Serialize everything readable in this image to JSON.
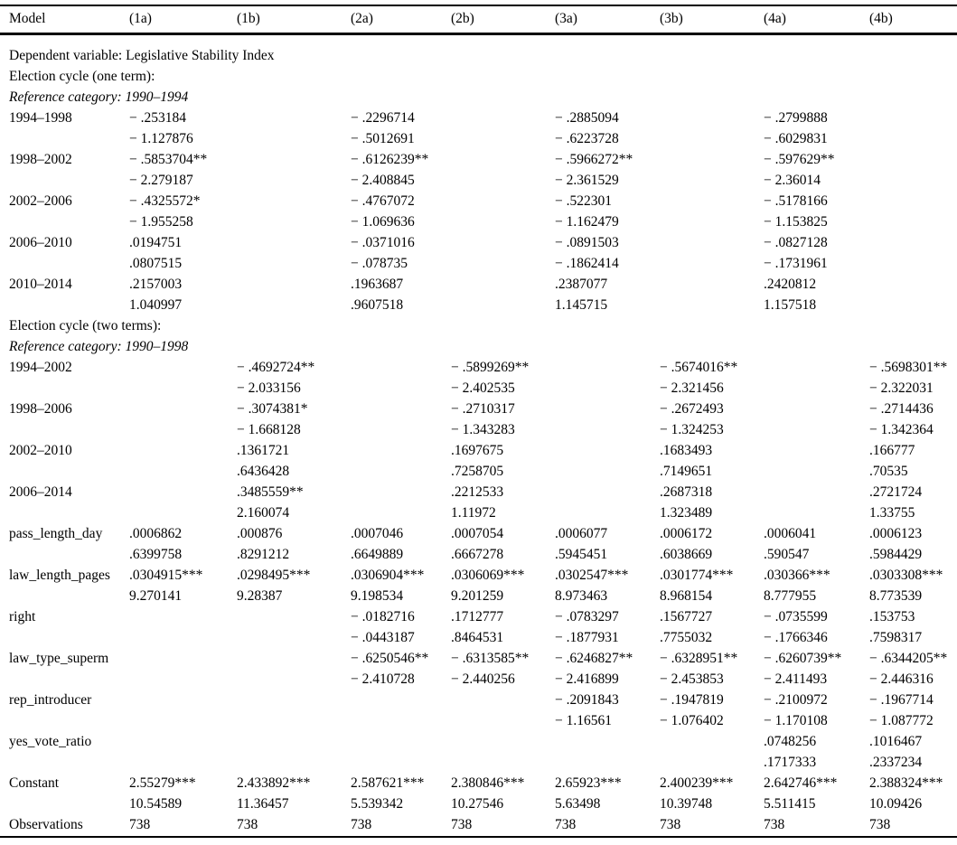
{
  "table": {
    "header": [
      "Model",
      "(1a)",
      "(1b)",
      "(2a)",
      "(2b)",
      "(3a)",
      "(3b)",
      "(4a)",
      "(4b)"
    ],
    "rows": [
      {
        "style": "span",
        "label": "Dependent variable: Legislative Stability Index"
      },
      {
        "style": "span",
        "label": "Election cycle (one term):"
      },
      {
        "style": "span-italic",
        "label": "Reference category: 1990–1994"
      },
      {
        "style": "data",
        "label": "1994–1998",
        "cells": [
          "− .253184",
          "",
          "− .2296714",
          "",
          "− .2885094",
          "",
          "− .2799888",
          ""
        ]
      },
      {
        "style": "data",
        "label": "",
        "cells": [
          "− 1.127876",
          "",
          "− .5012691",
          "",
          "− .6223728",
          "",
          "− .6029831",
          ""
        ]
      },
      {
        "style": "data",
        "label": "1998–2002",
        "cells": [
          "− .5853704**",
          "",
          "− .6126239**",
          "",
          "− .5966272**",
          "",
          "− .597629**",
          ""
        ]
      },
      {
        "style": "data",
        "label": "",
        "cells": [
          "− 2.279187",
          "",
          "− 2.408845",
          "",
          "− 2.361529",
          "",
          "− 2.36014",
          ""
        ]
      },
      {
        "style": "data",
        "label": "2002–2006",
        "cells": [
          "− .4325572*",
          "",
          "− .4767072",
          "",
          "− .522301",
          "",
          "− .5178166",
          ""
        ]
      },
      {
        "style": "data",
        "label": "",
        "cells": [
          "− 1.955258",
          "",
          "− 1.069636",
          "",
          "− 1.162479",
          "",
          "− 1.153825",
          ""
        ]
      },
      {
        "style": "data",
        "label": "2006–2010",
        "cells": [
          ".0194751",
          "",
          "− .0371016",
          "",
          "− .0891503",
          "",
          "− .0827128",
          ""
        ]
      },
      {
        "style": "data",
        "label": "",
        "cells": [
          ".0807515",
          "",
          "− .078735",
          "",
          "− .1862414",
          "",
          "− .1731961",
          ""
        ]
      },
      {
        "style": "data",
        "label": "2010–2014",
        "cells": [
          ".2157003",
          "",
          ".1963687",
          "",
          ".2387077",
          "",
          ".2420812",
          ""
        ]
      },
      {
        "style": "data",
        "label": "",
        "cells": [
          "1.040997",
          "",
          ".9607518",
          "",
          "1.145715",
          "",
          "1.157518",
          ""
        ]
      },
      {
        "style": "span",
        "label": "Election cycle (two terms):"
      },
      {
        "style": "span-italic",
        "label": "Reference category: 1990–1998"
      },
      {
        "style": "data",
        "label": "1994–2002",
        "cells": [
          "",
          "− .4692724**",
          "",
          "− .5899269**",
          "",
          "− .5674016**",
          "",
          "− .5698301**"
        ]
      },
      {
        "style": "data",
        "label": "",
        "cells": [
          "",
          "− 2.033156",
          "",
          "− 2.402535",
          "",
          "− 2.321456",
          "",
          "− 2.322031"
        ]
      },
      {
        "style": "data",
        "label": "1998–2006",
        "cells": [
          "",
          "− .3074381*",
          "",
          "− .2710317",
          "",
          "− .2672493",
          "",
          "− .2714436"
        ]
      },
      {
        "style": "data",
        "label": "",
        "cells": [
          "",
          "− 1.668128",
          "",
          "− 1.343283",
          "",
          "− 1.324253",
          "",
          "− 1.342364"
        ]
      },
      {
        "style": "data",
        "label": "2002–2010",
        "cells": [
          "",
          ".1361721",
          "",
          ".1697675",
          "",
          ".1683493",
          "",
          ".166777"
        ]
      },
      {
        "style": "data",
        "label": "",
        "cells": [
          "",
          ".6436428",
          "",
          ".7258705",
          "",
          ".7149651",
          "",
          ".70535"
        ]
      },
      {
        "style": "data",
        "label": "2006–2014",
        "cells": [
          "",
          ".3485559**",
          "",
          ".2212533",
          "",
          ".2687318",
          "",
          ".2721724"
        ]
      },
      {
        "style": "data",
        "label": "",
        "cells": [
          "",
          "2.160074",
          "",
          "1.11972",
          "",
          "1.323489",
          "",
          "1.33755"
        ]
      },
      {
        "style": "data",
        "label": "pass_length_day",
        "cells": [
          ".0006862",
          ".000876",
          ".0007046",
          ".0007054",
          ".0006077",
          ".0006172",
          ".0006041",
          ".0006123"
        ]
      },
      {
        "style": "data",
        "label": "",
        "cells": [
          ".6399758",
          ".8291212",
          ".6649889",
          ".6667278",
          ".5945451",
          ".6038669",
          ".590547",
          ".5984429"
        ]
      },
      {
        "style": "data",
        "label": "law_length_pages",
        "cells": [
          ".0304915***",
          ".0298495***",
          ".0306904***",
          ".0306069***",
          ".0302547***",
          ".0301774***",
          ".030366***",
          ".0303308***"
        ]
      },
      {
        "style": "data",
        "label": "",
        "cells": [
          "9.270141",
          "9.28387",
          "9.198534",
          "9.201259",
          "8.973463",
          "8.968154",
          "8.777955",
          "8.773539"
        ]
      },
      {
        "style": "data",
        "label": "right",
        "cells": [
          "",
          "",
          "− .0182716",
          ".1712777",
          "− .0783297",
          ".1567727",
          "− .0735599",
          ".153753"
        ]
      },
      {
        "style": "data",
        "label": "",
        "cells": [
          "",
          "",
          "− .0443187",
          ".8464531",
          "− .1877931",
          ".7755032",
          "− .1766346",
          ".7598317"
        ]
      },
      {
        "style": "data",
        "label": "law_type_superm",
        "cells": [
          "",
          "",
          "− .6250546**",
          "− .6313585**",
          "− .6246827**",
          "− .6328951**",
          "− .6260739**",
          "− .6344205**"
        ]
      },
      {
        "style": "data",
        "label": "",
        "cells": [
          "",
          "",
          "− 2.410728",
          "− 2.440256",
          "− 2.416899",
          "− 2.453853",
          "− 2.411493",
          "− 2.446316"
        ]
      },
      {
        "style": "data",
        "label": "rep_introducer",
        "cells": [
          "",
          "",
          "",
          "",
          "− .2091843",
          "− .1947819",
          "− .2100972",
          "− .1967714"
        ]
      },
      {
        "style": "data",
        "label": "",
        "cells": [
          "",
          "",
          "",
          "",
          "− 1.16561",
          "− 1.076402",
          "− 1.170108",
          "− 1.087772"
        ]
      },
      {
        "style": "data",
        "label": "yes_vote_ratio",
        "cells": [
          "",
          "",
          "",
          "",
          "",
          "",
          ".0748256",
          ".1016467"
        ]
      },
      {
        "style": "data",
        "label": "",
        "cells": [
          "",
          "",
          "",
          "",
          "",
          "",
          ".1717333",
          ".2337234"
        ]
      },
      {
        "style": "data",
        "label": "Constant",
        "cells": [
          "2.55279***",
          "2.433892***",
          "2.587621***",
          "2.380846***",
          "2.65923***",
          "2.400239***",
          "2.642746***",
          "2.388324***"
        ]
      },
      {
        "style": "data",
        "label": "",
        "cells": [
          "10.54589",
          "11.36457",
          "5.539342",
          "10.27546",
          "5.63498",
          "10.39748",
          "5.511415",
          "10.09426"
        ]
      },
      {
        "style": "data",
        "label": "Observations",
        "cells": [
          "738",
          "738",
          "738",
          "738",
          "738",
          "738",
          "738",
          "738"
        ]
      }
    ]
  }
}
